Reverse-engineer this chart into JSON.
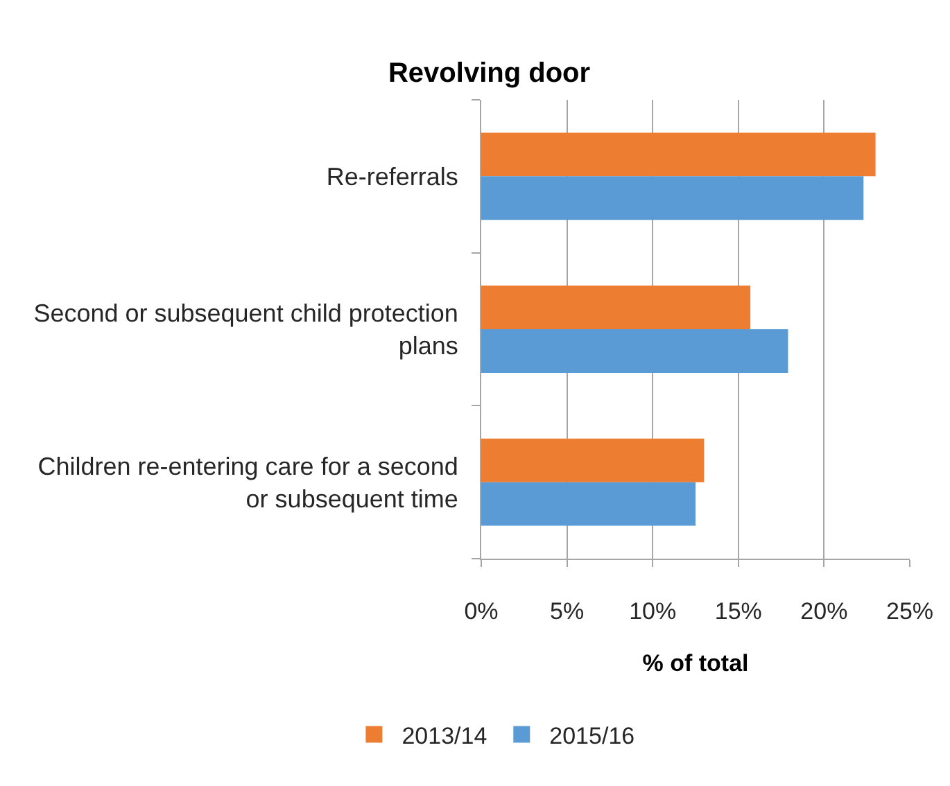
{
  "chart_data": {
    "type": "bar",
    "orientation": "horizontal",
    "title": "Revolving door",
    "xlabel": "% of total",
    "categories": [
      "Re-referrals",
      "Second or subsequent child protection plans",
      "Children re-entering care for a second or subsequent time"
    ],
    "series": [
      {
        "name": "2013/14",
        "color": "#ed7d31",
        "values": [
          23.0,
          15.7,
          13.0
        ]
      },
      {
        "name": "2015/16",
        "color": "#5b9bd5",
        "values": [
          22.3,
          17.9,
          12.5
        ]
      }
    ],
    "xlim": [
      0,
      25
    ],
    "xticks": [
      {
        "value": 0,
        "label": "0%"
      },
      {
        "value": 5,
        "label": "5%"
      },
      {
        "value": 10,
        "label": "10%"
      },
      {
        "value": 15,
        "label": "15%"
      },
      {
        "value": 20,
        "label": "20%"
      },
      {
        "value": 25,
        "label": "25%"
      }
    ],
    "grid": "x",
    "legend": "bottom"
  }
}
